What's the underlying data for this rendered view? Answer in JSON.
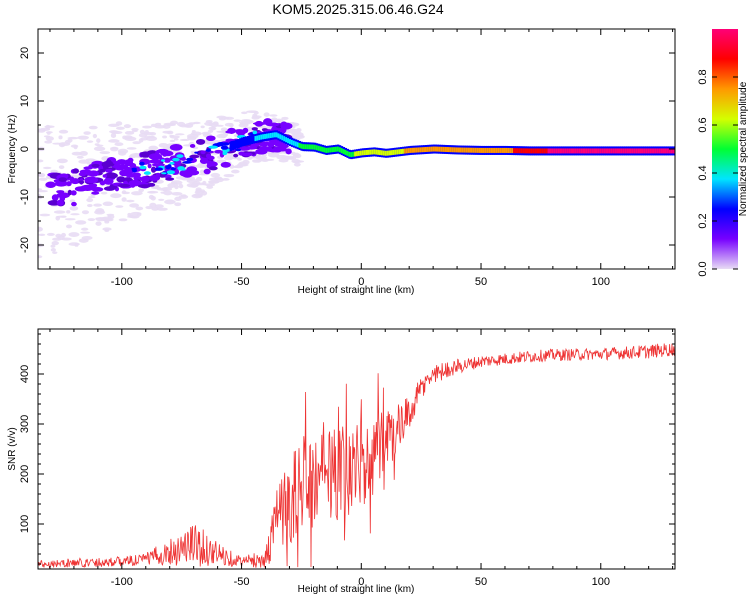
{
  "figure": {
    "title": "KOM5.2025.315.06.46.G24"
  },
  "chart_data": [
    {
      "type": "heatmap",
      "xlabel": "Height of straight line (km)",
      "ylabel": "Frequency (Hz)",
      "xlim": [
        -135,
        131
      ],
      "ylim": [
        -25,
        25
      ],
      "xticks": [
        -100,
        -50,
        0,
        50,
        100
      ],
      "yticks": [
        -20,
        -10,
        0,
        10,
        20
      ],
      "colorbar": {
        "label": "Normalized spectral amplitude",
        "range": [
          0,
          1
        ],
        "ticks": [
          "0.0",
          "0.2",
          "0.4",
          "0.6",
          "0.8"
        ],
        "colormap": [
          "#e8dcf4",
          "#7700ff",
          "#0000ff",
          "#00e5ff",
          "#00ff33",
          "#d4ff00",
          "#ff9900",
          "#ff0000",
          "#ff0077"
        ]
      },
      "ridge": {
        "x": [
          -135,
          -120,
          -100,
          -80,
          -65,
          -50,
          -42,
          -36,
          -30,
          -25,
          -20,
          -15,
          -10,
          -5,
          0,
          5,
          10,
          20,
          30,
          40,
          50,
          60,
          70,
          80,
          100,
          131
        ],
        "y": [
          -9,
          -8,
          -5,
          -3.5,
          -1.5,
          1.5,
          2.5,
          3,
          1.5,
          0.5,
          0.4,
          -0.3,
          0,
          -1.2,
          -0.8,
          -0.6,
          -0.9,
          -0.3,
          0,
          -0.2,
          -0.3,
          -0.3,
          -0.4,
          -0.4,
          -0.4,
          -0.4
        ],
        "amplitude": [
          0.05,
          0.07,
          0.1,
          0.15,
          0.18,
          0.3,
          0.32,
          0.35,
          0.4,
          0.45,
          0.5,
          0.5,
          0.55,
          0.55,
          0.6,
          0.6,
          0.65,
          0.7,
          0.72,
          0.75,
          0.75,
          0.78,
          0.9,
          0.95,
          0.95,
          0.95
        ]
      }
    },
    {
      "type": "line",
      "xlabel": "Height of straight line (km)",
      "ylabel": "SNR (v/v)",
      "xlim": [
        -135,
        131
      ],
      "ylim": [
        10,
        490
      ],
      "xticks": [
        -100,
        -50,
        0,
        50,
        100
      ],
      "yticks": [
        100,
        200,
        300,
        400
      ],
      "color": "#ee3333",
      "envelope": {
        "x": [
          -135,
          -100,
          -90,
          -80,
          -70,
          -60,
          -50,
          -40,
          -35,
          -30,
          -25,
          -20,
          -10,
          0,
          10,
          15,
          20,
          25,
          30,
          40,
          50,
          60,
          70,
          80,
          100,
          120,
          131
        ],
        "baseline": [
          20,
          25,
          30,
          45,
          60,
          40,
          25,
          30,
          110,
          150,
          170,
          180,
          200,
          220,
          250,
          280,
          320,
          370,
          400,
          415,
          425,
          430,
          435,
          438,
          440,
          445,
          450
        ],
        "noise": [
          8,
          10,
          12,
          28,
          45,
          25,
          10,
          20,
          70,
          90,
          110,
          100,
          95,
          90,
          85,
          60,
          35,
          25,
          20,
          15,
          12,
          12,
          12,
          12,
          12,
          14,
          14
        ]
      }
    }
  ]
}
